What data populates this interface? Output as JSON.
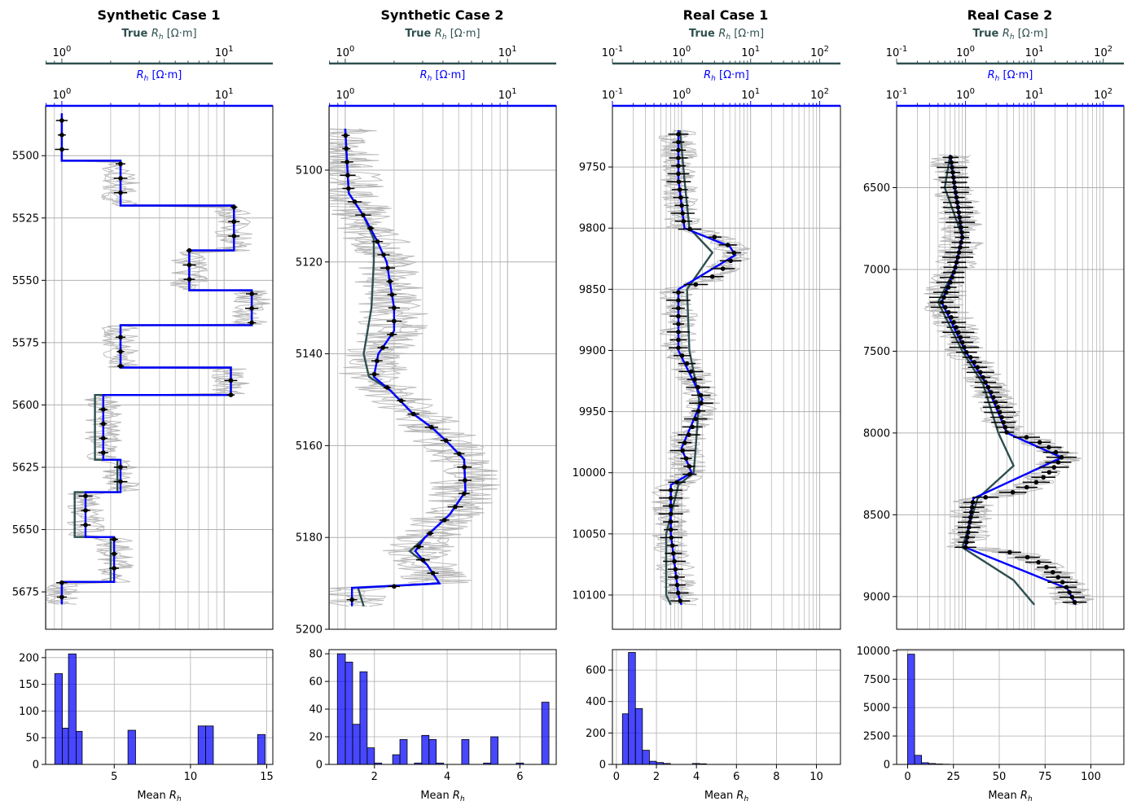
{
  "figure": {
    "true_axis_label": "True R_h [Ω·m]",
    "true_axis_prefix": "True",
    "rh_axis_label": "R_h [Ω·m]",
    "hist_xlabel": "Mean R_h",
    "colors": {
      "true": "#2f4f4f",
      "pred": "#0000ff",
      "ensemble": "#b0b0b0",
      "points": "#000000",
      "hist": "#0000ff"
    }
  },
  "chart_data": [
    {
      "type": "line",
      "title": "Synthetic Case 1",
      "x_scale": "log",
      "xlim_log": [
        -0.1,
        1.3
      ],
      "x_tick_labels": [
        "10^0",
        "10^1"
      ],
      "ylim": [
        5690,
        5480
      ],
      "y_ticks": [
        5500,
        5525,
        5550,
        5575,
        5600,
        5625,
        5650,
        5675
      ],
      "grid": true,
      "series": [
        {
          "name": "True R_h",
          "profile": [
            [
              5483,
              1.0
            ],
            [
              5502,
              1.0
            ],
            [
              5502,
              2.3
            ],
            [
              5520,
              2.3
            ],
            [
              5520,
              11.5
            ],
            [
              5538,
              11.5
            ],
            [
              5538,
              6.1
            ],
            [
              5554,
              6.1
            ],
            [
              5554,
              14.8
            ],
            [
              5568,
              14.8
            ],
            [
              5568,
              2.3
            ],
            [
              5585,
              2.3
            ],
            [
              5585,
              11.0
            ],
            [
              5596,
              11.0
            ],
            [
              5596,
              1.6
            ],
            [
              5622,
              1.6
            ],
            [
              5622,
              2.2
            ],
            [
              5635,
              2.2
            ],
            [
              5635,
              1.2
            ],
            [
              5653,
              1.2
            ],
            [
              5653,
              2.0
            ],
            [
              5671,
              2.0
            ],
            [
              5671,
              1.0
            ],
            [
              5680,
              1.0
            ]
          ]
        },
        {
          "name": "R_h",
          "profile": [
            [
              5483,
              1.0
            ],
            [
              5502,
              1.0
            ],
            [
              5502,
              2.3
            ],
            [
              5520,
              2.3
            ],
            [
              5520,
              11.5
            ],
            [
              5538,
              11.5
            ],
            [
              5538,
              6.1
            ],
            [
              5554,
              6.1
            ],
            [
              5554,
              14.8
            ],
            [
              5568,
              14.8
            ],
            [
              5568,
              2.3
            ],
            [
              5585,
              2.3
            ],
            [
              5585,
              11.0
            ],
            [
              5596,
              11.0
            ],
            [
              5596,
              1.8
            ],
            [
              5622,
              1.8
            ],
            [
              5622,
              2.3
            ],
            [
              5635,
              2.3
            ],
            [
              5635,
              1.4
            ],
            [
              5653,
              1.4
            ],
            [
              5653,
              2.1
            ],
            [
              5671,
              2.1
            ],
            [
              5671,
              1.0
            ],
            [
              5680,
              1.0
            ]
          ]
        }
      ]
    },
    {
      "type": "line",
      "title": "Synthetic Case 2",
      "x_scale": "log",
      "xlim_log": [
        -0.1,
        1.3
      ],
      "x_tick_labels": [
        "10^0",
        "10^1"
      ],
      "ylim": [
        5200,
        5086
      ],
      "y_ticks": [
        5100,
        5120,
        5140,
        5160,
        5180,
        5200
      ],
      "grid": true,
      "series": [
        {
          "name": "True R_h",
          "profile": [
            [
              5091,
              1.0
            ],
            [
              5105,
              1.05
            ],
            [
              5110,
              1.3
            ],
            [
              5115,
              1.5
            ],
            [
              5120,
              1.5
            ],
            [
              5130,
              1.45
            ],
            [
              5140,
              1.3
            ],
            [
              5145,
              1.4
            ],
            [
              5148,
              1.9
            ],
            [
              5153,
              2.6
            ],
            [
              5156,
              3.4
            ],
            [
              5159,
              4.2
            ],
            [
              5163,
              5.4
            ],
            [
              5170,
              5.5
            ],
            [
              5175,
              4.4
            ],
            [
              5180,
              3.1
            ],
            [
              5183,
              2.5
            ],
            [
              5186,
              3.2
            ],
            [
              5190,
              3.8
            ],
            [
              5191,
              1.2
            ],
            [
              5195,
              1.3
            ]
          ]
        },
        {
          "name": "R_h",
          "profile": [
            [
              5091,
              1.0
            ],
            [
              5105,
              1.05
            ],
            [
              5110,
              1.3
            ],
            [
              5115,
              1.55
            ],
            [
              5120,
              1.8
            ],
            [
              5130,
              2.0
            ],
            [
              5135,
              2.0
            ],
            [
              5140,
              1.6
            ],
            [
              5145,
              1.5
            ],
            [
              5148,
              1.9
            ],
            [
              5153,
              2.6
            ],
            [
              5156,
              3.4
            ],
            [
              5159,
              4.2
            ],
            [
              5163,
              5.4
            ],
            [
              5170,
              5.5
            ],
            [
              5175,
              4.4
            ],
            [
              5180,
              3.1
            ],
            [
              5183,
              2.7
            ],
            [
              5186,
              3.2
            ],
            [
              5190,
              3.8
            ],
            [
              5191,
              1.1
            ],
            [
              5195,
              1.1
            ]
          ]
        }
      ]
    },
    {
      "type": "line",
      "title": "Real Case 1",
      "x_scale": "log",
      "xlim_log": [
        -1,
        2.3
      ],
      "x_tick_labels": [
        "10^-1",
        "10^0",
        "10^1",
        "10^2"
      ],
      "ylim": [
        10128,
        9700
      ],
      "y_ticks": [
        9750,
        9800,
        9850,
        9900,
        9950,
        10000,
        10050,
        10100
      ],
      "grid": true,
      "series": [
        {
          "name": "True R_h",
          "profile": [
            [
              9720,
              0.95
            ],
            [
              9760,
              1.1
            ],
            [
              9800,
              1.3
            ],
            [
              9820,
              2.8
            ],
            [
              9850,
              1.2
            ],
            [
              9900,
              1.3
            ],
            [
              9940,
              1.8
            ],
            [
              9980,
              1.6
            ],
            [
              10000,
              1.5
            ],
            [
              10010,
              0.9
            ],
            [
              10050,
              0.6
            ],
            [
              10100,
              0.6
            ],
            [
              10108,
              0.7
            ]
          ]
        },
        {
          "name": "R_h",
          "profile": [
            [
              9720,
              0.9
            ],
            [
              9760,
              0.9
            ],
            [
              9800,
              1.1
            ],
            [
              9815,
              5.0
            ],
            [
              9822,
              6.0
            ],
            [
              9850,
              0.9
            ],
            [
              9900,
              0.9
            ],
            [
              9940,
              2.0
            ],
            [
              9980,
              1.0
            ],
            [
              10000,
              1.4
            ],
            [
              10010,
              0.7
            ],
            [
              10050,
              0.7
            ],
            [
              10100,
              0.9
            ],
            [
              10108,
              1.0
            ]
          ]
        }
      ]
    },
    {
      "type": "line",
      "title": "Real Case 2",
      "x_scale": "log",
      "xlim_log": [
        -1,
        2.3
      ],
      "x_tick_labels": [
        "10^-1",
        "10^0",
        "10^1",
        "10^2"
      ],
      "ylim": [
        9200,
        6000
      ],
      "y_ticks": [
        6500,
        7000,
        7500,
        8000,
        8500,
        9000
      ],
      "grid": true,
      "series": [
        {
          "name": "True R_h",
          "profile": [
            [
              6300,
              0.6
            ],
            [
              6500,
              0.5
            ],
            [
              6800,
              0.9
            ],
            [
              7000,
              0.7
            ],
            [
              7200,
              0.4
            ],
            [
              7500,
              0.9
            ],
            [
              7700,
              1.8
            ],
            [
              8000,
              3.0
            ],
            [
              8200,
              5.0
            ],
            [
              8400,
              1.5
            ],
            [
              8700,
              0.9
            ],
            [
              8900,
              5.0
            ],
            [
              9050,
              10.0
            ]
          ]
        },
        {
          "name": "R_h",
          "profile": [
            [
              6300,
              0.6
            ],
            [
              6500,
              0.7
            ],
            [
              6800,
              0.9
            ],
            [
              7000,
              0.7
            ],
            [
              7200,
              0.45
            ],
            [
              7500,
              1.0
            ],
            [
              7700,
              2.0
            ],
            [
              8000,
              4.0
            ],
            [
              8150,
              25.0
            ],
            [
              8400,
              1.3
            ],
            [
              8700,
              1.0
            ],
            [
              8950,
              30.0
            ],
            [
              9050,
              40.0
            ]
          ]
        }
      ]
    },
    {
      "type": "bar",
      "xlabel": "Mean R_h",
      "xlim": [
        0.5,
        15.4
      ],
      "x_ticks": [
        5,
        10,
        15
      ],
      "ylim": [
        0,
        215
      ],
      "y_ticks": [
        0,
        50,
        100,
        150,
        200
      ],
      "grid": true,
      "bins": [
        {
          "x0": 1.1,
          "x1": 1.6,
          "count": 170
        },
        {
          "x0": 1.6,
          "x1": 2.0,
          "count": 68
        },
        {
          "x0": 2.0,
          "x1": 2.5,
          "count": 207
        },
        {
          "x0": 2.5,
          "x1": 2.9,
          "count": 62
        },
        {
          "x0": 5.9,
          "x1": 6.4,
          "count": 64
        },
        {
          "x0": 10.5,
          "x1": 11.0,
          "count": 72
        },
        {
          "x0": 11.0,
          "x1": 11.5,
          "count": 72
        },
        {
          "x0": 14.4,
          "x1": 14.9,
          "count": 56
        }
      ]
    },
    {
      "type": "bar",
      "xlabel": "Mean R_h",
      "xlim": [
        0.75,
        7.0
      ],
      "x_ticks": [
        2,
        4,
        6
      ],
      "ylim": [
        0,
        83
      ],
      "y_ticks": [
        0,
        20,
        40,
        60,
        80
      ],
      "grid": true,
      "bins": [
        {
          "x0": 0.98,
          "x1": 1.2,
          "count": 80
        },
        {
          "x0": 1.2,
          "x1": 1.4,
          "count": 74
        },
        {
          "x0": 1.4,
          "x1": 1.6,
          "count": 29
        },
        {
          "x0": 1.6,
          "x1": 1.8,
          "count": 67
        },
        {
          "x0": 1.8,
          "x1": 2.0,
          "count": 12
        },
        {
          "x0": 2.0,
          "x1": 2.2,
          "count": 1
        },
        {
          "x0": 2.5,
          "x1": 2.7,
          "count": 7
        },
        {
          "x0": 2.7,
          "x1": 2.9,
          "count": 18
        },
        {
          "x0": 3.1,
          "x1": 3.3,
          "count": 1
        },
        {
          "x0": 3.3,
          "x1": 3.5,
          "count": 21
        },
        {
          "x0": 3.5,
          "x1": 3.7,
          "count": 18
        },
        {
          "x0": 3.7,
          "x1": 3.9,
          "count": 1
        },
        {
          "x0": 4.4,
          "x1": 4.6,
          "count": 18
        },
        {
          "x0": 5.0,
          "x1": 5.2,
          "count": 1
        },
        {
          "x0": 5.2,
          "x1": 5.4,
          "count": 20
        },
        {
          "x0": 5.9,
          "x1": 6.1,
          "count": 1
        },
        {
          "x0": 6.6,
          "x1": 6.8,
          "count": 45
        }
      ]
    },
    {
      "type": "bar",
      "xlabel": "Mean R_h",
      "xlim": [
        -0.2,
        11.2
      ],
      "x_ticks": [
        0,
        2,
        4,
        6,
        8,
        10
      ],
      "ylim": [
        0,
        730
      ],
      "y_ticks": [
        0,
        200,
        400,
        600
      ],
      "grid": true,
      "bins": [
        {
          "x0": 0.3,
          "x1": 0.6,
          "count": 322
        },
        {
          "x0": 0.6,
          "x1": 0.95,
          "count": 712
        },
        {
          "x0": 0.95,
          "x1": 1.3,
          "count": 355
        },
        {
          "x0": 1.3,
          "x1": 1.65,
          "count": 90
        },
        {
          "x0": 1.65,
          "x1": 2.0,
          "count": 20
        },
        {
          "x0": 2.0,
          "x1": 2.35,
          "count": 12
        },
        {
          "x0": 2.35,
          "x1": 2.7,
          "count": 6
        },
        {
          "x0": 3.8,
          "x1": 4.15,
          "count": 6
        },
        {
          "x0": 4.15,
          "x1": 4.5,
          "count": 4
        }
      ]
    },
    {
      "type": "bar",
      "xlabel": "Mean R_h",
      "xlim": [
        -6,
        118
      ],
      "x_ticks": [
        0,
        25,
        50,
        75,
        100
      ],
      "ylim": [
        0,
        10100
      ],
      "y_ticks": [
        0,
        2500,
        5000,
        7500,
        10000
      ],
      "grid": true,
      "bins": [
        {
          "x0": 0,
          "x1": 3.8,
          "count": 9700
        },
        {
          "x0": 3.8,
          "x1": 7.6,
          "count": 800
        },
        {
          "x0": 7.6,
          "x1": 11.4,
          "count": 150
        },
        {
          "x0": 11.4,
          "x1": 15.2,
          "count": 80
        },
        {
          "x0": 15.2,
          "x1": 19.0,
          "count": 40
        },
        {
          "x0": 19.0,
          "x1": 22.8,
          "count": 20
        }
      ]
    }
  ]
}
